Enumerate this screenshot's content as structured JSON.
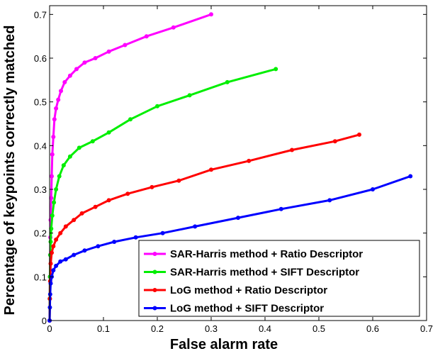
{
  "chart_data": {
    "type": "line",
    "title": "",
    "xlabel": "False alarm rate",
    "ylabel": "Percentage of keypoints correctly matched",
    "xlim": [
      0,
      0.7
    ],
    "ylim": [
      0,
      0.72
    ],
    "xticks": [
      "0",
      "0.1",
      "0.2",
      "0.3",
      "0.4",
      "0.5",
      "0.6",
      "0.7"
    ],
    "yticks": [
      "0",
      "0.1",
      "0.2",
      "0.3",
      "0.4",
      "0.5",
      "0.6",
      "0.7"
    ],
    "grid": false,
    "legend_position": "bottom-right",
    "series": [
      {
        "name": "SAR-Harris method + Ratio Descriptor",
        "color": "#ff00ff",
        "x": [
          0,
          0.0002,
          0.0005,
          0.001,
          0.0015,
          0.002,
          0.003,
          0.004,
          0.005,
          0.007,
          0.009,
          0.012,
          0.016,
          0.021,
          0.028,
          0.038,
          0.05,
          0.065,
          0.085,
          0.11,
          0.14,
          0.18,
          0.23,
          0.3
        ],
        "y": [
          0.0,
          0.05,
          0.1,
          0.15,
          0.19,
          0.23,
          0.28,
          0.33,
          0.38,
          0.42,
          0.46,
          0.485,
          0.505,
          0.525,
          0.545,
          0.56,
          0.575,
          0.59,
          0.6,
          0.615,
          0.63,
          0.65,
          0.67,
          0.7
        ]
      },
      {
        "name": "SAR-Harris method + SIFT Descriptor",
        "color": "#00ee00",
        "x": [
          0,
          0.0003,
          0.0007,
          0.0012,
          0.002,
          0.003,
          0.005,
          0.008,
          0.012,
          0.018,
          0.026,
          0.038,
          0.055,
          0.08,
          0.11,
          0.15,
          0.2,
          0.26,
          0.33,
          0.42
        ],
        "y": [
          0.0,
          0.05,
          0.1,
          0.15,
          0.18,
          0.21,
          0.24,
          0.27,
          0.3,
          0.33,
          0.355,
          0.375,
          0.395,
          0.41,
          0.43,
          0.46,
          0.49,
          0.515,
          0.545,
          0.575
        ]
      },
      {
        "name": "LoG method + Ratio Descriptor",
        "color": "#ff0000",
        "x": [
          0,
          0.0005,
          0.001,
          0.002,
          0.004,
          0.007,
          0.012,
          0.02,
          0.03,
          0.045,
          0.06,
          0.085,
          0.11,
          0.145,
          0.19,
          0.24,
          0.3,
          0.37,
          0.45,
          0.53,
          0.575
        ],
        "y": [
          0.0,
          0.05,
          0.09,
          0.13,
          0.155,
          0.17,
          0.185,
          0.2,
          0.215,
          0.23,
          0.245,
          0.26,
          0.275,
          0.29,
          0.305,
          0.32,
          0.345,
          0.365,
          0.39,
          0.41,
          0.425
        ]
      },
      {
        "name": "LoG method + SIFT Descriptor",
        "color": "#0000ff",
        "x": [
          0,
          0.0005,
          0.001,
          0.002,
          0.004,
          0.007,
          0.012,
          0.02,
          0.03,
          0.045,
          0.065,
          0.09,
          0.12,
          0.16,
          0.21,
          0.27,
          0.35,
          0.43,
          0.52,
          0.6,
          0.67
        ],
        "y": [
          0.0,
          0.03,
          0.06,
          0.085,
          0.1,
          0.115,
          0.125,
          0.135,
          0.14,
          0.15,
          0.16,
          0.17,
          0.18,
          0.19,
          0.2,
          0.215,
          0.235,
          0.255,
          0.275,
          0.3,
          0.33
        ]
      }
    ]
  }
}
